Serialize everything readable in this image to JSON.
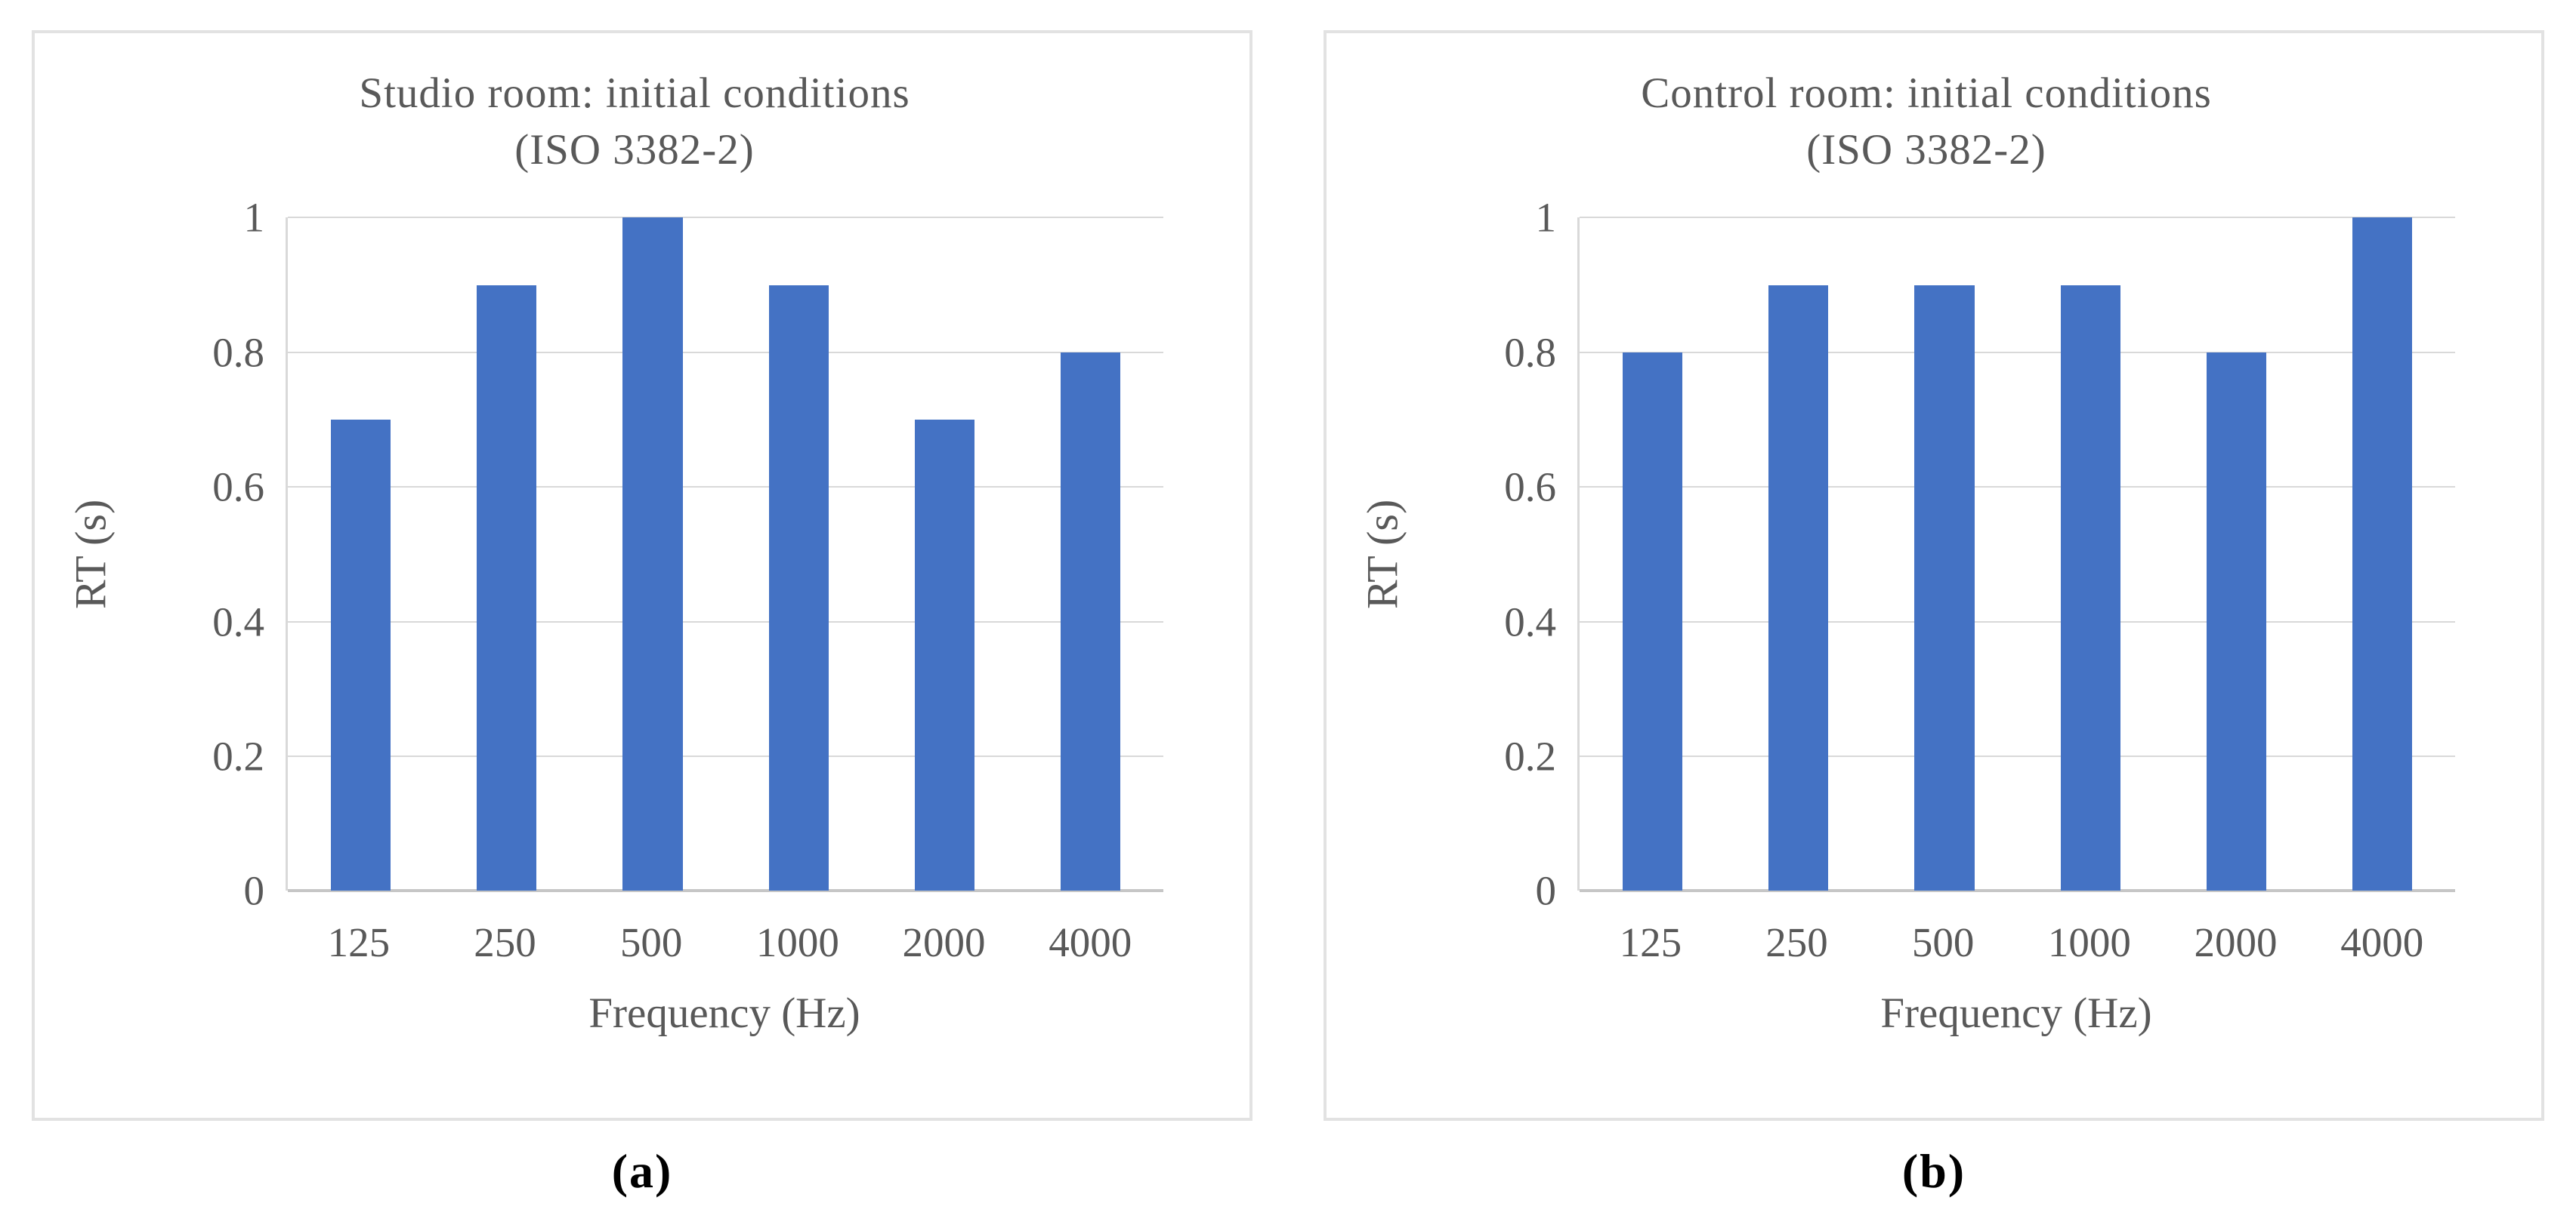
{
  "figure": {
    "background": "#ffffff",
    "panel_border_color": "#e2e2e2",
    "text_color": "#595959",
    "gridline_color": "#d9d9d9",
    "axis_line_color": "#c6c6c6",
    "caption_color": "#000000"
  },
  "chart_data": [
    {
      "type": "bar",
      "panel_label": "(a)",
      "title": "Studio room: initial conditions",
      "subtitle": "(ISO 3382-2)",
      "xlabel": "Frequency (Hz)",
      "ylabel": "RT (s)",
      "categories": [
        "125",
        "250",
        "500",
        "1000",
        "2000",
        "4000"
      ],
      "values": [
        0.7,
        0.9,
        1.0,
        0.9,
        0.7,
        0.8
      ],
      "ylim": [
        0,
        1
      ],
      "yticks": [
        0,
        0.2,
        0.4,
        0.6,
        0.8,
        1
      ],
      "ytick_labels": [
        "0",
        "0.2",
        "0.4",
        "0.6",
        "0.8",
        "1"
      ],
      "grid": "horizontal",
      "legend": "none",
      "bar_color": "#4472C4"
    },
    {
      "type": "bar",
      "panel_label": "(b)",
      "title": "Control room: initial conditions",
      "subtitle": "(ISO 3382-2)",
      "xlabel": "Frequency (Hz)",
      "ylabel": "RT (s)",
      "categories": [
        "125",
        "250",
        "500",
        "1000",
        "2000",
        "4000"
      ],
      "values": [
        0.8,
        0.9,
        0.9,
        0.9,
        0.8,
        1.0
      ],
      "ylim": [
        0,
        1
      ],
      "yticks": [
        0,
        0.2,
        0.4,
        0.6,
        0.8,
        1
      ],
      "ytick_labels": [
        "0",
        "0.2",
        "0.4",
        "0.6",
        "0.8",
        "1"
      ],
      "grid": "horizontal",
      "legend": "none",
      "bar_color": "#4472C4"
    }
  ]
}
